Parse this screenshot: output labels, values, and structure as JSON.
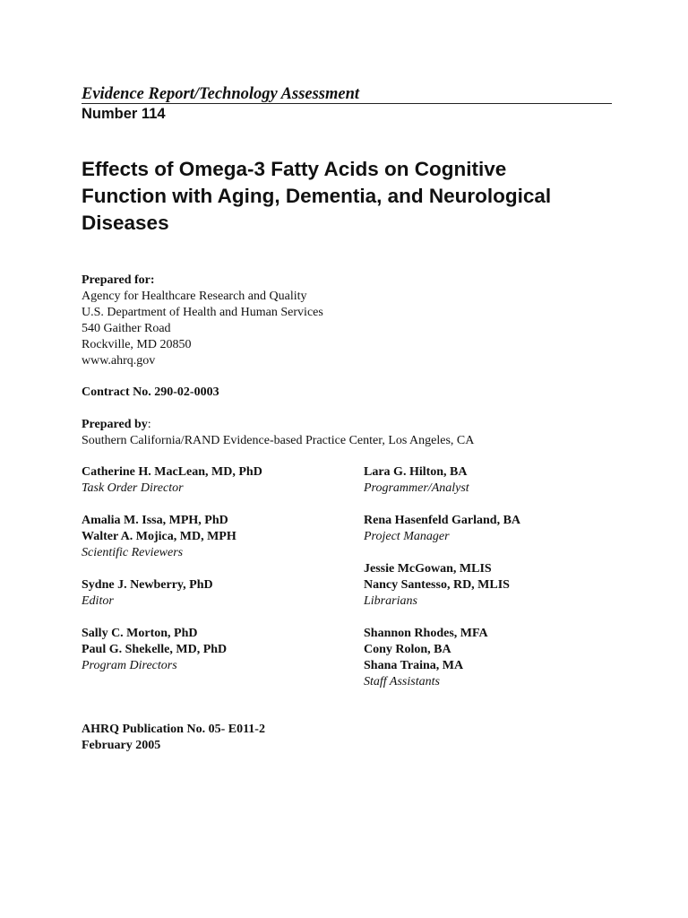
{
  "header": {
    "series": "Evidence Report/Technology Assessment",
    "number": "Number 114"
  },
  "title_lines": [
    "Effects of Omega-3 Fatty Acids on Cognitive",
    "Function with Aging, Dementia, and Neurological",
    "Diseases"
  ],
  "prepared_for": {
    "label": "Prepared for:",
    "lines": [
      "Agency for Healthcare Research and Quality",
      "U.S. Department of Health and Human Services",
      "540 Gaither Road",
      "Rockville, MD  20850",
      "www.ahrq.gov"
    ]
  },
  "contract": "Contract No. 290-02-0003",
  "prepared_by": {
    "label": "Prepared by",
    "colon": ":",
    "org": "Southern California/RAND Evidence-based Practice Center, Los Angeles, CA"
  },
  "left_column": [
    {
      "names": [
        "Catherine H. MacLean, MD, PhD"
      ],
      "role": "Task Order Director"
    },
    {
      "names": [
        "Amalia M. Issa, MPH, PhD",
        "Walter A. Mojica, MD, MPH"
      ],
      "role": "Scientific Reviewers"
    },
    {
      "names": [
        "Sydne J. Newberry, PhD"
      ],
      "role": "Editor"
    },
    {
      "names": [
        "Sally C. Morton, PhD",
        "Paul G. Shekelle, MD, PhD"
      ],
      "role": "Program Directors"
    }
  ],
  "right_column": [
    {
      "names": [
        "Lara G. Hilton, BA"
      ],
      "role": "Programmer/Analyst"
    },
    {
      "names": [
        "Rena Hasenfeld Garland, BA"
      ],
      "role": "Project Manager"
    },
    {
      "names": [
        "Jessie McGowan, MLIS",
        "Nancy Santesso, RD, MLIS"
      ],
      "role": "Librarians"
    },
    {
      "names": [
        "Shannon Rhodes, MFA",
        "Cony Rolon, BA",
        "Shana Traina, MA"
      ],
      "role": "Staff Assistants"
    }
  ],
  "publication": {
    "number": "AHRQ Publication No. 05- E011-2",
    "date": "February 2005"
  }
}
